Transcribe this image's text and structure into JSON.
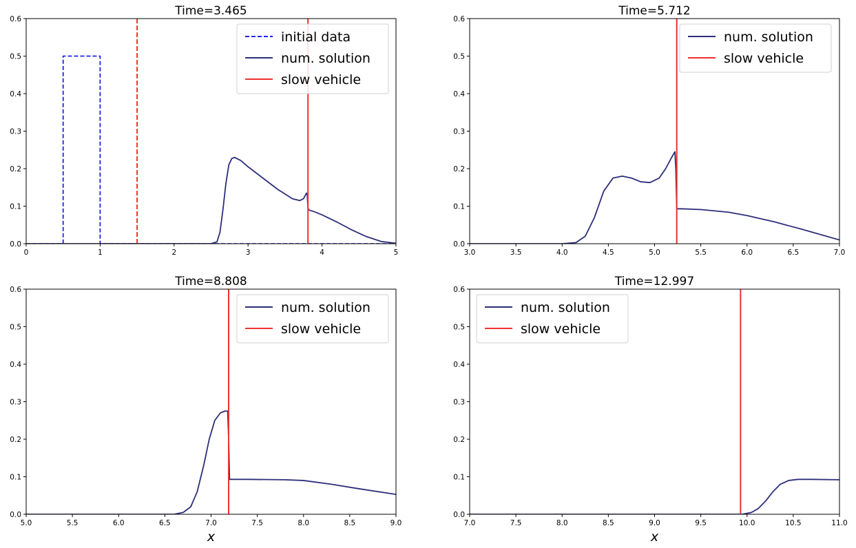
{
  "colors": {
    "solution": "#2b2d7a",
    "initial": "#1f1ff0",
    "vehicle": "#f03030",
    "initial_vehicle": "#f03030"
  },
  "chart_data": [
    {
      "type": "line",
      "title": "Time=3.465",
      "xlabel": "",
      "ylabel": "",
      "xlim": [
        0,
        5
      ],
      "ylim": [
        0,
        0.6
      ],
      "xticks": [
        "0",
        "1",
        "2",
        "3",
        "4",
        "5"
      ],
      "yticks": [
        "0.0",
        "0.1",
        "0.2",
        "0.3",
        "0.4",
        "0.5",
        "0.6"
      ],
      "legend_position": "top-right",
      "series": [
        {
          "name": "initial data",
          "style": "dashed",
          "color": "#1f1ff0",
          "x": [
            0,
            0.5,
            0.5,
            1.0,
            1.0,
            5.0
          ],
          "y": [
            0,
            0,
            0.5,
            0.5,
            0,
            0
          ]
        },
        {
          "name": "num. solution",
          "style": "solid",
          "color": "#2b2d7a",
          "x": [
            0,
            2.5,
            2.58,
            2.62,
            2.66,
            2.7,
            2.74,
            2.78,
            2.82,
            2.9,
            3.0,
            3.2,
            3.4,
            3.6,
            3.7,
            3.75,
            3.79,
            3.8,
            3.81,
            3.82,
            3.9,
            4.0,
            4.2,
            4.4,
            4.6,
            4.8,
            5.0
          ],
          "y": [
            0,
            0,
            0.005,
            0.03,
            0.09,
            0.16,
            0.21,
            0.227,
            0.23,
            0.222,
            0.205,
            0.175,
            0.145,
            0.12,
            0.115,
            0.12,
            0.135,
            0.13,
            0.095,
            0.09,
            0.085,
            0.077,
            0.058,
            0.037,
            0.019,
            0.006,
            0.001
          ]
        }
      ],
      "vlines": [
        {
          "name": "",
          "x": 1.5,
          "style": "dashed",
          "color": "#f03030"
        },
        {
          "name": "slow vehicle",
          "x": 3.81,
          "style": "solid",
          "color": "#f03030"
        }
      ]
    },
    {
      "type": "line",
      "title": "Time=5.712",
      "xlabel": "",
      "ylabel": "",
      "xlim": [
        3.0,
        7.0
      ],
      "ylim": [
        0,
        0.6
      ],
      "xticks": [
        "3.0",
        "3.5",
        "4.0",
        "4.5",
        "5.0",
        "5.5",
        "6.0",
        "6.5",
        "7.0"
      ],
      "yticks": [
        "0.0",
        "0.1",
        "0.2",
        "0.3",
        "0.4",
        "0.5",
        "0.6"
      ],
      "legend_position": "top-right",
      "series": [
        {
          "name": "num. solution",
          "style": "solid",
          "color": "#2b2d7a",
          "x": [
            3.0,
            4.0,
            4.15,
            4.25,
            4.35,
            4.45,
            4.55,
            4.65,
            4.75,
            4.85,
            4.95,
            5.05,
            5.12,
            5.18,
            5.22,
            5.23,
            5.24,
            5.3,
            5.5,
            5.8,
            6.0,
            6.3,
            6.6,
            7.0
          ],
          "y": [
            0,
            0,
            0.003,
            0.02,
            0.07,
            0.14,
            0.175,
            0.18,
            0.175,
            0.165,
            0.163,
            0.175,
            0.2,
            0.228,
            0.245,
            0.2,
            0.093,
            0.093,
            0.091,
            0.084,
            0.075,
            0.058,
            0.038,
            0.01
          ]
        }
      ],
      "vlines": [
        {
          "name": "slow vehicle",
          "x": 5.24,
          "style": "solid",
          "color": "#f03030"
        }
      ]
    },
    {
      "type": "line",
      "title": "Time=8.808",
      "xlabel": "x",
      "ylabel": "",
      "xlim": [
        5.0,
        9.0
      ],
      "ylim": [
        0,
        0.6
      ],
      "xticks": [
        "5.0",
        "5.5",
        "6.0",
        "6.5",
        "7.0",
        "7.5",
        "8.0",
        "8.5",
        "9.0"
      ],
      "yticks": [
        "0.0",
        "0.1",
        "0.2",
        "0.3",
        "0.4",
        "0.5",
        "0.6"
      ],
      "legend_position": "top-right",
      "series": [
        {
          "name": "num. solution",
          "style": "solid",
          "color": "#2b2d7a",
          "x": [
            5.0,
            6.6,
            6.7,
            6.78,
            6.85,
            6.92,
            6.98,
            7.04,
            7.1,
            7.15,
            7.18,
            7.19,
            7.2,
            7.4,
            7.8,
            8.0,
            8.3,
            8.6,
            9.0
          ],
          "y": [
            0,
            0,
            0.005,
            0.02,
            0.06,
            0.13,
            0.2,
            0.25,
            0.27,
            0.275,
            0.275,
            0.2,
            0.093,
            0.093,
            0.092,
            0.09,
            0.08,
            0.068,
            0.053
          ]
        }
      ],
      "vlines": [
        {
          "name": "slow vehicle",
          "x": 7.19,
          "style": "solid",
          "color": "#f03030"
        }
      ]
    },
    {
      "type": "line",
      "title": "Time=12.997",
      "xlabel": "x",
      "ylabel": "",
      "xlim": [
        7.0,
        11.0
      ],
      "ylim": [
        0,
        0.6
      ],
      "xticks": [
        "7.0",
        "7.5",
        "8.0",
        "8.5",
        "9.0",
        "9.5",
        "10.0",
        "10.5",
        "11.0"
      ],
      "yticks": [
        "0.0",
        "0.1",
        "0.2",
        "0.3",
        "0.4",
        "0.5",
        "0.6"
      ],
      "legend_position": "top-left",
      "series": [
        {
          "name": "num. solution",
          "style": "solid",
          "color": "#2b2d7a",
          "x": [
            7.0,
            9.95,
            10.05,
            10.12,
            10.2,
            10.28,
            10.36,
            10.45,
            10.55,
            10.7,
            11.0
          ],
          "y": [
            0,
            0,
            0.005,
            0.015,
            0.035,
            0.06,
            0.08,
            0.09,
            0.093,
            0.093,
            0.092
          ]
        }
      ],
      "vlines": [
        {
          "name": "slow vehicle",
          "x": 9.93,
          "style": "solid",
          "color": "#f03030"
        }
      ]
    }
  ]
}
